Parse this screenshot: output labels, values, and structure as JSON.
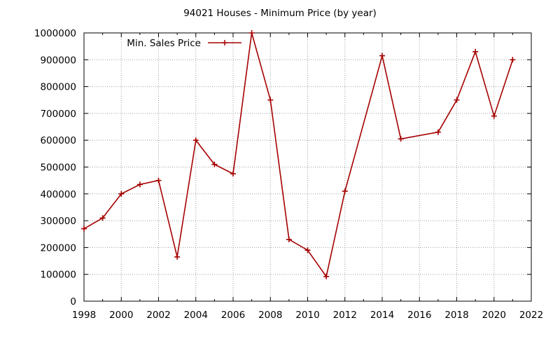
{
  "chart_data": {
    "type": "line",
    "title": "94021 Houses - Minimum Price (by year)",
    "xlabel": "",
    "ylabel": "",
    "xlim": [
      1998,
      2022
    ],
    "ylim": [
      0,
      1000000
    ],
    "xticks": [
      1998,
      2000,
      2002,
      2004,
      2006,
      2008,
      2010,
      2012,
      2014,
      2016,
      2018,
      2020,
      2022
    ],
    "yticks": [
      0,
      100000,
      200000,
      300000,
      400000,
      500000,
      600000,
      700000,
      800000,
      900000,
      1000000
    ],
    "grid": true,
    "legend_position": "top-left",
    "series": [
      {
        "name": "Min. Sales Price",
        "color": "#a50000",
        "marker": "plus",
        "x": [
          1998,
          1999,
          2000,
          2001,
          2002,
          2003,
          2004,
          2005,
          2006,
          2007,
          2008,
          2009,
          2010,
          2011,
          2012,
          2014,
          2015,
          2017,
          2018,
          2019,
          2020,
          2021
        ],
        "y": [
          270000,
          310000,
          400000,
          435000,
          450000,
          165000,
          600000,
          510000,
          475000,
          1000000,
          750000,
          230000,
          190000,
          92000,
          410000,
          915000,
          605000,
          630000,
          750000,
          930000,
          690000,
          900000
        ]
      }
    ]
  }
}
